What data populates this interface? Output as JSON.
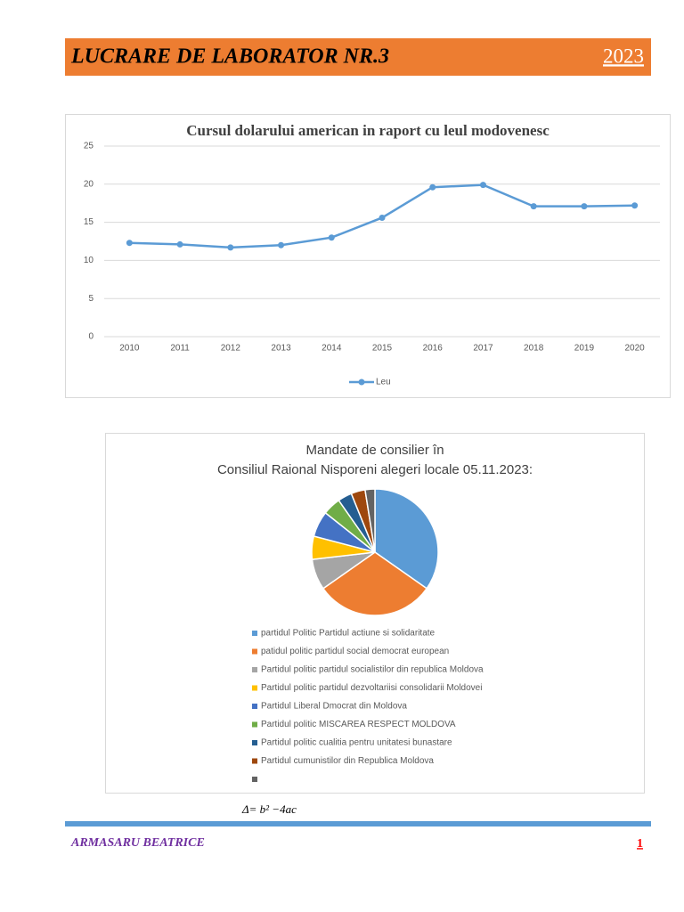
{
  "header": {
    "title": "LUCRARE DE LABORATOR NR.3",
    "year": "2023"
  },
  "chart_data": [
    {
      "type": "line",
      "title": "Cursul dolarului american in raport cu leul modovenesc",
      "categories": [
        "2010",
        "2011",
        "2012",
        "2013",
        "2014",
        "2015",
        "2016",
        "2017",
        "2018",
        "2019",
        "2020"
      ],
      "series": [
        {
          "name": "Leu",
          "color": "#5b9bd5",
          "values": [
            12.3,
            12.1,
            11.7,
            12.0,
            13.0,
            15.6,
            19.6,
            19.9,
            17.1,
            17.1,
            17.2
          ]
        }
      ],
      "ylim": [
        0,
        25
      ],
      "yticks": [
        0,
        5,
        10,
        15,
        20,
        25
      ],
      "grid": true,
      "legend": "bottom"
    },
    {
      "type": "pie",
      "title": "Mandate de consilier în",
      "subtitle": "Consiliul Raional Nisporeni alegeri locale 05.11.2023:",
      "categories": [
        "partidul Politic Partidul actiune si solidaritate",
        "patidul politic partidul social democrat european",
        "Partidul politic partidul socialistilor din republica Moldova",
        "Partidul politic partidul dezvoltariisi consolidarii Moldovei",
        "Partidul Liberal Dmocrat din Moldova",
        "Partidul politic MISCAREA RESPECT MOLDOVA",
        "Partidul politic cualitia pentru unitatesi bunastare",
        "Partidul cumunistilor din Republica Moldova",
        null
      ],
      "values": [
        34.7,
        30.5,
        7.9,
        5.9,
        6.6,
        4.6,
        3.6,
        3.6,
        2.5
      ],
      "colors": [
        "#5b9bd5",
        "#ed7d31",
        "#a5a5a5",
        "#ffc000",
        "#4472c4",
        "#70ad47",
        "#255e91",
        "#9e480e",
        "#636363"
      ],
      "legend": "bottom"
    }
  ],
  "formula": "Δ= b² −4ac",
  "footer": {
    "author": "ARMASARU BEATRICE",
    "page": "1"
  }
}
